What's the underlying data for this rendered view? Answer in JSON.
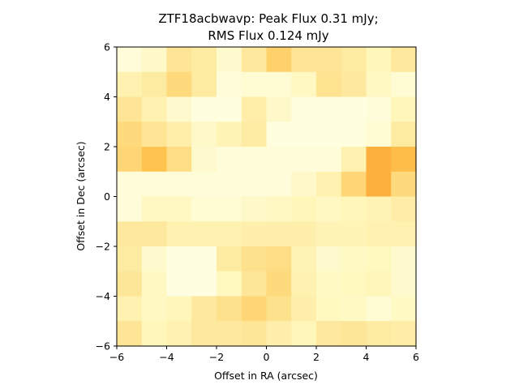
{
  "chart_data": {
    "type": "heatmap",
    "title_line1": "ZTF18acbwavp: Peak Flux 0.31 mJy;",
    "title_line2": "RMS Flux 0.124 mJy",
    "xlabel": "Offset in RA (arcsec)",
    "ylabel": "Offset in Dec (arcsec)",
    "xlim": [
      -6,
      6
    ],
    "ylim": [
      -6,
      6
    ],
    "xticks": [
      -6,
      -4,
      -2,
      0,
      2,
      4,
      6
    ],
    "yticks": [
      -6,
      -4,
      -2,
      0,
      2,
      4,
      6
    ],
    "colormap": "YlOrBr",
    "grid": false,
    "rows_top_to_bottom": [
      [
        0.05,
        0.12,
        0.33,
        0.28,
        0.1,
        0.3,
        0.45,
        0.33,
        0.33,
        0.28,
        0.18,
        0.3
      ],
      [
        0.22,
        0.28,
        0.4,
        0.28,
        0.05,
        0.08,
        0.08,
        0.15,
        0.35,
        0.3,
        0.15,
        0.08
      ],
      [
        0.33,
        0.22,
        0.1,
        0.03,
        0.03,
        0.25,
        0.12,
        0.03,
        0.03,
        0.03,
        0.05,
        0.18
      ],
      [
        0.4,
        0.33,
        0.25,
        0.12,
        0.2,
        0.27,
        0.03,
        0.03,
        0.03,
        0.03,
        0.08,
        0.28
      ],
      [
        0.42,
        0.52,
        0.38,
        0.1,
        0.05,
        0.05,
        0.05,
        0.05,
        0.05,
        0.22,
        0.6,
        0.55
      ],
      [
        0.05,
        0.05,
        0.05,
        0.05,
        0.05,
        0.05,
        0.05,
        0.12,
        0.22,
        0.42,
        0.6,
        0.4
      ],
      [
        0.05,
        0.15,
        0.15,
        0.08,
        0.08,
        0.12,
        0.15,
        0.18,
        0.15,
        0.18,
        0.2,
        0.26
      ],
      [
        0.3,
        0.3,
        0.22,
        0.22,
        0.22,
        0.24,
        0.24,
        0.24,
        0.2,
        0.2,
        0.22,
        0.22
      ],
      [
        0.28,
        0.1,
        0.02,
        0.02,
        0.28,
        0.36,
        0.38,
        0.2,
        0.1,
        0.14,
        0.16,
        0.1
      ],
      [
        0.32,
        0.15,
        0.02,
        0.02,
        0.16,
        0.32,
        0.4,
        0.22,
        0.14,
        0.16,
        0.18,
        0.1
      ],
      [
        0.22,
        0.15,
        0.18,
        0.3,
        0.36,
        0.42,
        0.36,
        0.24,
        0.16,
        0.14,
        0.08,
        0.14
      ],
      [
        0.33,
        0.18,
        0.22,
        0.3,
        0.3,
        0.32,
        0.24,
        0.18,
        0.3,
        0.32,
        0.28,
        0.26
      ]
    ]
  }
}
